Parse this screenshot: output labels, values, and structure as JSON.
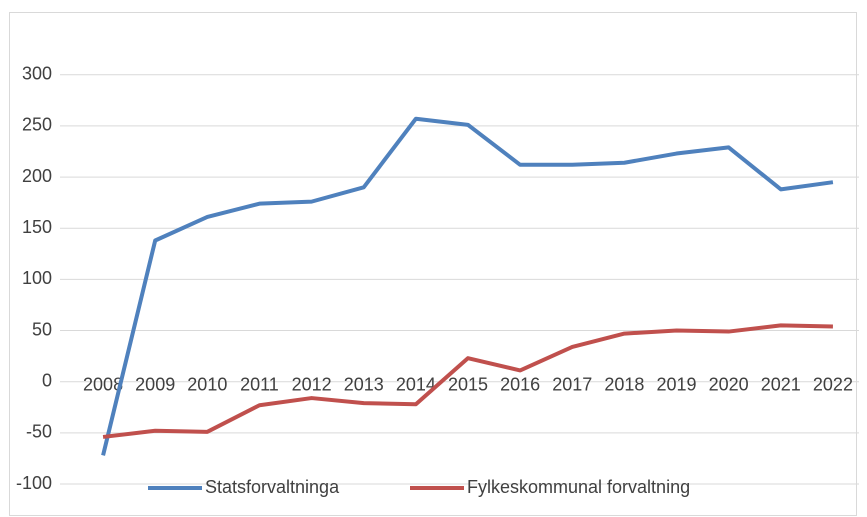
{
  "chart_data": {
    "type": "line",
    "categories": [
      "2008",
      "2009",
      "2010",
      "2011",
      "2012",
      "2013",
      "2014",
      "2015",
      "2016",
      "2017",
      "2018",
      "2019",
      "2020",
      "2021",
      "2022"
    ],
    "series": [
      {
        "name": "Statsforvaltninga",
        "color": "#4f81bd",
        "values": [
          -72,
          138,
          161,
          174,
          176,
          190,
          257,
          251,
          212,
          212,
          214,
          223,
          229,
          188,
          195
        ]
      },
      {
        "name": "Fylkeskommunal forvaltning",
        "color": "#c0504d",
        "values": [
          -54,
          -48,
          -49,
          -23,
          -16,
          -21,
          -22,
          23,
          11,
          34,
          47,
          50,
          49,
          55,
          54
        ]
      }
    ],
    "ylim": [
      -100,
      350
    ],
    "yticks": [
      -100,
      -50,
      0,
      50,
      100,
      150,
      200,
      250,
      300
    ],
    "grid": true,
    "legend": "bottom"
  }
}
